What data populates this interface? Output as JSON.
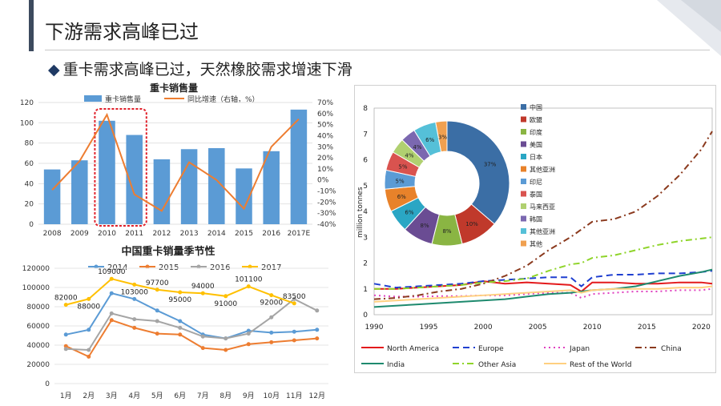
{
  "header": {
    "title": "下游需求高峰已过",
    "subtitle": "重卡需求高峰已过，天然橡胶需求增速下滑",
    "bullet": "◆"
  },
  "chart_data": [
    {
      "type": "bar",
      "title": "重卡销售量",
      "categories": [
        "2008",
        "2009",
        "2010",
        "2011",
        "2012",
        "2013",
        "2014",
        "2015",
        "2016",
        "2017E"
      ],
      "series": [
        {
          "name": "重卡销售量",
          "type": "bar",
          "axis": "left",
          "color": "#5b9bd5",
          "values": [
            54,
            63,
            102,
            88,
            64,
            74,
            75,
            55,
            72,
            113
          ]
        },
        {
          "name": "同比增速（右轴，%）",
          "type": "line",
          "axis": "right",
          "color": "#ed7d31",
          "values": [
            -9,
            17,
            59,
            -13,
            -28,
            16,
            0,
            -26,
            30,
            55
          ]
        }
      ],
      "ylim": [
        0,
        120
      ],
      "yticks": [
        "0",
        "20",
        "40",
        "60",
        "80",
        "100",
        "120"
      ],
      "y2lim": [
        -40,
        70
      ],
      "y2ticks": [
        "-40%",
        "-30%",
        "-20%",
        "-10%",
        "0%",
        "10%",
        "20%",
        "30%",
        "40%",
        "50%",
        "60%",
        "70%"
      ],
      "highlight": [
        "2010",
        "2011"
      ]
    },
    {
      "type": "line",
      "title": "中国重卡销量季节性",
      "categories": [
        "1月",
        "2月",
        "3月",
        "4月",
        "5月",
        "6月",
        "7月",
        "8月",
        "9月",
        "10月",
        "11月",
        "12月"
      ],
      "series": [
        {
          "name": "2014",
          "color": "#5b9bd5",
          "values": [
            51000,
            56000,
            94000,
            88000,
            76000,
            65000,
            51000,
            47000,
            55000,
            53000,
            54000,
            56000
          ]
        },
        {
          "name": "2015",
          "color": "#ed7d31",
          "values": [
            39000,
            28000,
            66000,
            58000,
            52000,
            51000,
            37000,
            35000,
            41000,
            43000,
            45000,
            47000
          ]
        },
        {
          "name": "2016",
          "color": "#a5a5a5",
          "values": [
            36000,
            35000,
            73000,
            67000,
            65000,
            58000,
            49000,
            47000,
            52000,
            69000,
            88000,
            76000
          ]
        },
        {
          "name": "2017",
          "color": "#ffc000",
          "values": [
            82000,
            88000,
            109000,
            103000,
            97700,
            95000,
            94000,
            91000,
            101100,
            92000,
            83500,
            null
          ]
        }
      ],
      "data_labels": [
        {
          "series": "2017",
          "index": 0,
          "text": "82000"
        },
        {
          "series": "2017",
          "index": 1,
          "text": "88000"
        },
        {
          "series": "2017",
          "index": 2,
          "text": "109000"
        },
        {
          "series": "2017",
          "index": 3,
          "text": "103000"
        },
        {
          "series": "2017",
          "index": 4,
          "text": "97700"
        },
        {
          "series": "2017",
          "index": 5,
          "text": "95000"
        },
        {
          "series": "2017",
          "index": 6,
          "text": "94000"
        },
        {
          "series": "2017",
          "index": 7,
          "text": "91000"
        },
        {
          "series": "2017",
          "index": 8,
          "text": "101100"
        },
        {
          "series": "2017",
          "index": 9,
          "text": "92000"
        },
        {
          "series": "2017",
          "index": 10,
          "text": "83500"
        }
      ],
      "ylim": [
        0,
        120000
      ],
      "yticks": [
        "0",
        "20000",
        "40000",
        "60000",
        "80000",
        "100000",
        "120000"
      ],
      "legend": "top"
    },
    {
      "type": "line",
      "ylabel": "million tonnes",
      "x": [
        1990,
        1992,
        1994,
        1996,
        1998,
        2000,
        2002,
        2004,
        2006,
        2008,
        2009,
        2010,
        2012,
        2014,
        2016,
        2018,
        2020,
        2021
      ],
      "xticks": [
        "1990",
        "1995",
        "2000",
        "2005",
        "2010",
        "2015",
        "2020"
      ],
      "ylim": [
        0,
        8
      ],
      "yticks": [
        "0",
        "1",
        "2",
        "3",
        "4",
        "5",
        "6",
        "7",
        "8"
      ],
      "series": [
        {
          "name": "North America",
          "color": "#e31a1c",
          "dash": "solid",
          "values": [
            1.0,
            1.0,
            1.05,
            1.1,
            1.15,
            1.3,
            1.2,
            1.25,
            1.2,
            1.15,
            0.9,
            1.25,
            1.25,
            1.2,
            1.2,
            1.25,
            1.25,
            1.2
          ]
        },
        {
          "name": "Europe",
          "color": "#1f3fd0",
          "dash": "dash",
          "values": [
            1.2,
            1.05,
            1.1,
            1.15,
            1.2,
            1.3,
            1.35,
            1.4,
            1.45,
            1.45,
            1.1,
            1.45,
            1.55,
            1.55,
            1.6,
            1.6,
            1.65,
            1.7
          ]
        },
        {
          "name": "Japan",
          "color": "#e040c0",
          "dash": "dot",
          "values": [
            0.75,
            0.7,
            0.7,
            0.72,
            0.72,
            0.75,
            0.75,
            0.8,
            0.85,
            0.85,
            0.65,
            0.8,
            0.85,
            0.9,
            0.9,
            0.95,
            0.95,
            1.0
          ]
        },
        {
          "name": "China",
          "color": "#8b3a1e",
          "dash": "dashdot",
          "values": [
            0.6,
            0.65,
            0.75,
            0.9,
            1.0,
            1.2,
            1.5,
            1.9,
            2.5,
            3.0,
            3.3,
            3.6,
            3.7,
            4.0,
            4.6,
            5.4,
            6.4,
            7.1
          ]
        },
        {
          "name": "India",
          "color": "#1e8a6e",
          "dash": "solid",
          "values": [
            0.3,
            0.35,
            0.4,
            0.45,
            0.5,
            0.55,
            0.6,
            0.7,
            0.8,
            0.85,
            0.9,
            0.95,
            1.0,
            1.1,
            1.3,
            1.5,
            1.65,
            1.75
          ]
        },
        {
          "name": "Other Asia",
          "color": "#8fd42a",
          "dash": "dashdot",
          "values": [
            1.0,
            1.0,
            1.05,
            1.1,
            1.15,
            1.25,
            1.3,
            1.4,
            1.7,
            1.95,
            2.0,
            2.2,
            2.3,
            2.5,
            2.7,
            2.85,
            2.95,
            3.0
          ]
        },
        {
          "name": "Rest of the World",
          "color": "#ffd080",
          "dash": "solid",
          "values": [
            0.5,
            0.55,
            0.6,
            0.65,
            0.7,
            0.75,
            0.8,
            0.85,
            0.9,
            0.95,
            0.85,
            0.95,
            1.0,
            1.0,
            1.0,
            1.05,
            1.05,
            1.1
          ]
        }
      ],
      "legend": "bottom"
    },
    {
      "type": "pie",
      "donut": true,
      "categories": [
        "中国",
        "欧盟",
        "印度",
        "美国",
        "日本",
        "其他亚洲",
        "印尼",
        "泰国",
        "马来西亚",
        "韩国",
        "其他亚洲",
        "其他"
      ],
      "values": [
        37,
        10,
        8,
        8,
        6,
        6,
        5,
        5,
        4,
        4,
        6,
        3
      ],
      "labels": [
        "37%",
        "10%",
        "8%",
        "8%",
        "6%",
        "6%",
        "5%",
        "5%",
        "4%",
        "4%",
        "6%",
        "3%"
      ],
      "colors": [
        "#3b6ea5",
        "#c0392b",
        "#8ab543",
        "#6a4c93",
        "#2aa6c4",
        "#e8822a",
        "#5b9bd5",
        "#d9534f",
        "#b0d070",
        "#7b68b0",
        "#55c0d8",
        "#f0a050"
      ],
      "legend": "left"
    }
  ]
}
